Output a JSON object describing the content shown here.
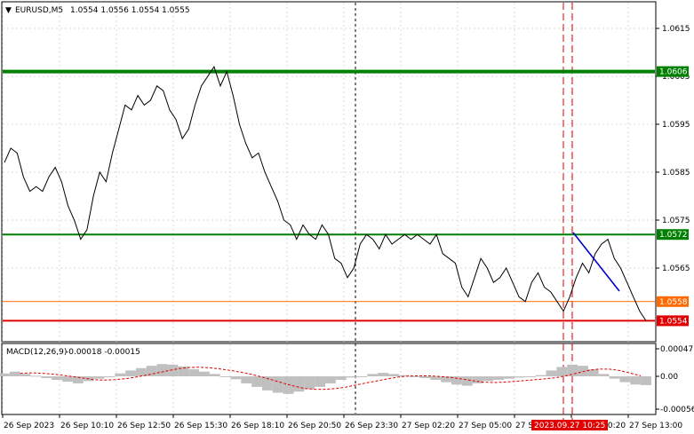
{
  "header": {
    "symbol": "EURUSD,M5",
    "ohlc": "1.0554 1.0556 1.0554 1.0555"
  },
  "macd": {
    "label": "MACD(12,26,9)",
    "values": "-0.00018 -0.00015",
    "axis_ticks": [
      "0.00047",
      "0.00",
      "-0.00056"
    ]
  },
  "price_axis": {
    "ticks": [
      "1.0615",
      "1.0605",
      "1.0595",
      "1.0585",
      "1.0575",
      "1.0565"
    ]
  },
  "levels": [
    {
      "label": "1.0606",
      "price": 1.0606,
      "color": "#008000"
    },
    {
      "label": "1.0572",
      "price": 1.0572,
      "color": "#008000"
    },
    {
      "label": "1.0558",
      "price": 1.0558,
      "color": "#ff6a00"
    },
    {
      "label": "1.0554",
      "price": 1.0554,
      "color": "#e00000"
    }
  ],
  "time_axis": {
    "labels": [
      "26 Sep 2023",
      "26 Sep 10:10",
      "26 Sep 12:50",
      "26 Sep 15:30",
      "26 Sep 18:10",
      "26 Sep 20:50",
      "26 Sep 23:30",
      "27 Sep 02:20",
      "27 Sep 05:00",
      "27 Sep 07:40",
      "27 Sep 10:20",
      "27 Sep 13:00"
    ],
    "cursor_label": "2023.09.27 10:25"
  },
  "chart_data": {
    "type": "line",
    "series": [
      {
        "values": [
          1.0587,
          1.059,
          1.0589,
          1.0584,
          1.0581,
          1.0582,
          1.0581,
          1.0584,
          1.0586,
          1.0583,
          1.0578,
          1.0575,
          1.0571,
          1.0573,
          1.058,
          1.0585,
          1.0583,
          1.0589,
          1.0594,
          1.0599,
          1.0598,
          1.0601,
          1.0599,
          1.06,
          1.0603,
          1.0602,
          1.0598,
          1.0596,
          1.0592,
          1.0594,
          1.0599,
          1.0603,
          1.0605,
          1.0607,
          1.0603,
          1.0606,
          1.0601,
          1.0595,
          1.0591,
          1.0588,
          1.0589,
          1.0585,
          1.0582,
          1.0579,
          1.0575,
          1.0574,
          1.0571,
          1.0574,
          1.0572,
          1.0571,
          1.0574,
          1.0572,
          1.0567,
          1.0566,
          1.0563,
          1.0565,
          1.057,
          1.0572,
          1.0571,
          1.0569,
          1.0572,
          1.057,
          1.0571,
          1.0572,
          1.0571,
          1.0572,
          1.0571,
          1.057,
          1.0572,
          1.0568,
          1.0567,
          1.0566,
          1.0561,
          1.0559,
          1.0563,
          1.0567,
          1.0565,
          1.0562,
          1.0563,
          1.0565,
          1.0562,
          1.0559,
          1.0558,
          1.0562,
          1.0564,
          1.0561,
          1.056,
          1.0558,
          1.0556,
          1.0559,
          1.0563,
          1.0566,
          1.0564,
          1.0568,
          1.057,
          1.0571,
          1.0567,
          1.0565,
          1.0562,
          1.0559,
          1.0556,
          1.0554
        ]
      }
    ],
    "macd_histogram": [
      5e-05,
      8e-05,
      4e-05,
      1e-05,
      -3e-05,
      -6e-05,
      -9e-05,
      -0.00012,
      -8e-05,
      -4e-05,
      0.0,
      5e-05,
      0.0001,
      0.00014,
      0.00018,
      0.00021,
      0.0002,
      0.00017,
      0.00012,
      8e-05,
      4e-05,
      0.0,
      -5e-05,
      -0.00012,
      -0.00018,
      -0.00024,
      -0.00028,
      -0.0003,
      -0.00026,
      -0.00022,
      -0.00018,
      -0.00012,
      -6e-05,
      -2e-05,
      0.0,
      4e-05,
      6e-05,
      4e-05,
      2e-05,
      0.0,
      -3e-05,
      -6e-05,
      -0.0001,
      -0.00014,
      -0.00016,
      -0.00012,
      -8e-05,
      -6e-05,
      -4e-05,
      -2e-05,
      0.0,
      2e-05,
      0.0001,
      0.00016,
      0.0002,
      0.00018,
      0.00012,
      4e-05,
      -4e-05,
      -0.0001,
      -0.00014,
      -0.00015
    ],
    "ylim": [
      1.055,
      1.0618
    ]
  }
}
